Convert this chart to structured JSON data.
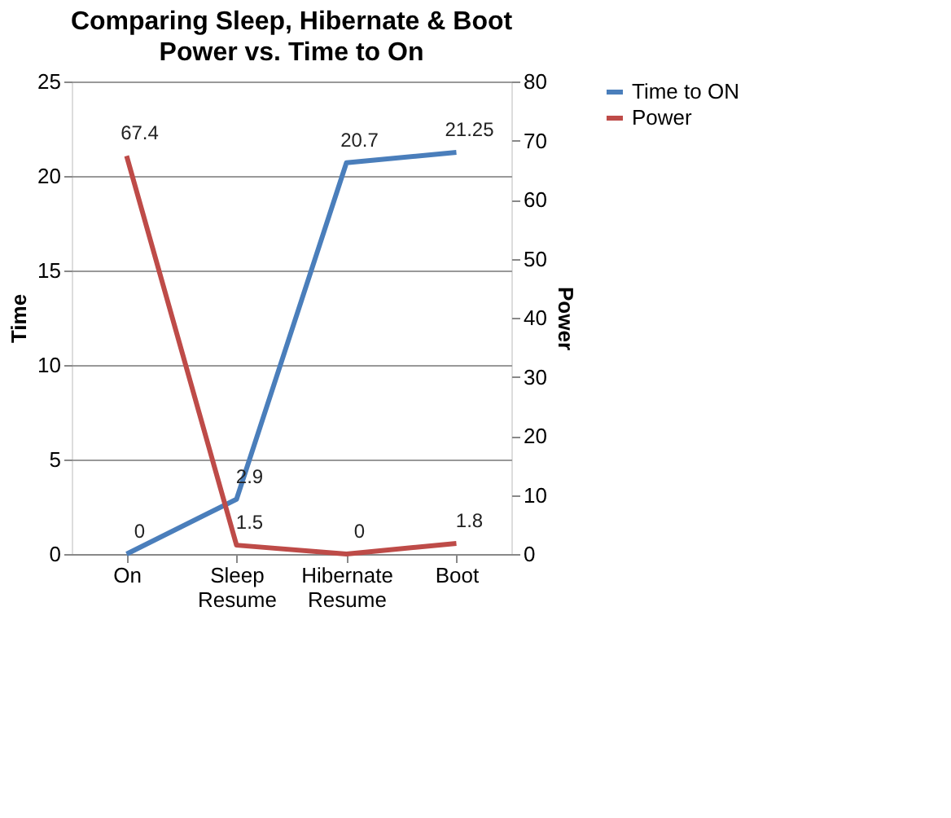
{
  "chart_data": {
    "type": "line",
    "title": "Comparing Sleep, Hibernate & Boot",
    "subtitle": "Power vs. Time to On",
    "categories": [
      "On",
      "Sleep Resume",
      "Hibernate Resume",
      "Boot"
    ],
    "ylabel": "Time",
    "y2label": "Power",
    "series": [
      {
        "name": "Time to ON",
        "color": "#4a7ebb",
        "values": [
          0,
          2.9,
          20.7,
          21.25
        ]
      },
      {
        "name": "Power",
        "color": "#be4b48",
        "values": [
          67.4,
          1.5,
          0,
          1.8
        ],
        "axis": "y2"
      }
    ],
    "ylim": [
      0,
      25
    ],
    "yticks": [
      0,
      5,
      10,
      15,
      20,
      25
    ],
    "y2lim": [
      0,
      80
    ],
    "y2ticks": [
      0,
      10,
      20,
      30,
      40,
      50,
      60,
      70,
      80
    ],
    "grid": "y",
    "legend": "right",
    "data_labels": true,
    "marker": "none",
    "line_style": "solid"
  }
}
